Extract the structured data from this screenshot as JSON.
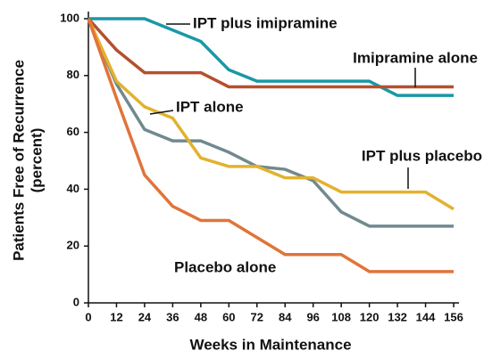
{
  "chart_data": {
    "type": "line",
    "x_label": "Weeks in Maintenance",
    "y_label": [
      "Patients Free of Recurrence",
      "(percent)"
    ],
    "x": [
      0,
      12,
      24,
      36,
      48,
      60,
      72,
      84,
      96,
      108,
      120,
      132,
      144,
      156
    ],
    "xlim": [
      0,
      156
    ],
    "xticks": [
      0,
      12,
      24,
      36,
      48,
      60,
      72,
      84,
      96,
      108,
      120,
      132,
      144,
      156
    ],
    "ylim": [
      0,
      100
    ],
    "yticks": [
      0,
      20,
      40,
      60,
      80,
      100
    ],
    "series": [
      {
        "name": "IPT plus imipramine",
        "color": "#1a98a6",
        "values": [
          100,
          100,
          100,
          96,
          92,
          82,
          78,
          78,
          78,
          78,
          78,
          73,
          73,
          73
        ]
      },
      {
        "name": "Imipramine alone",
        "color": "#b4502e",
        "values": [
          100,
          89,
          81,
          81,
          81,
          76,
          76,
          76,
          76,
          76,
          76,
          76,
          76,
          76
        ]
      },
      {
        "name": "IPT alone",
        "color": "#71898f",
        "values": [
          100,
          77,
          61,
          57,
          57,
          53,
          48,
          47,
          43,
          32,
          27,
          27,
          27,
          27
        ]
      },
      {
        "name": "IPT plus placebo",
        "color": "#e2b22e",
        "values": [
          100,
          78,
          69,
          65,
          51,
          48,
          48,
          44,
          44,
          39,
          39,
          39,
          39,
          33
        ]
      },
      {
        "name": "Placebo alone",
        "color": "#e0743a",
        "values": [
          100,
          72,
          45,
          34,
          29,
          29,
          23,
          17,
          17,
          17,
          11,
          11,
          11,
          11
        ]
      }
    ]
  }
}
